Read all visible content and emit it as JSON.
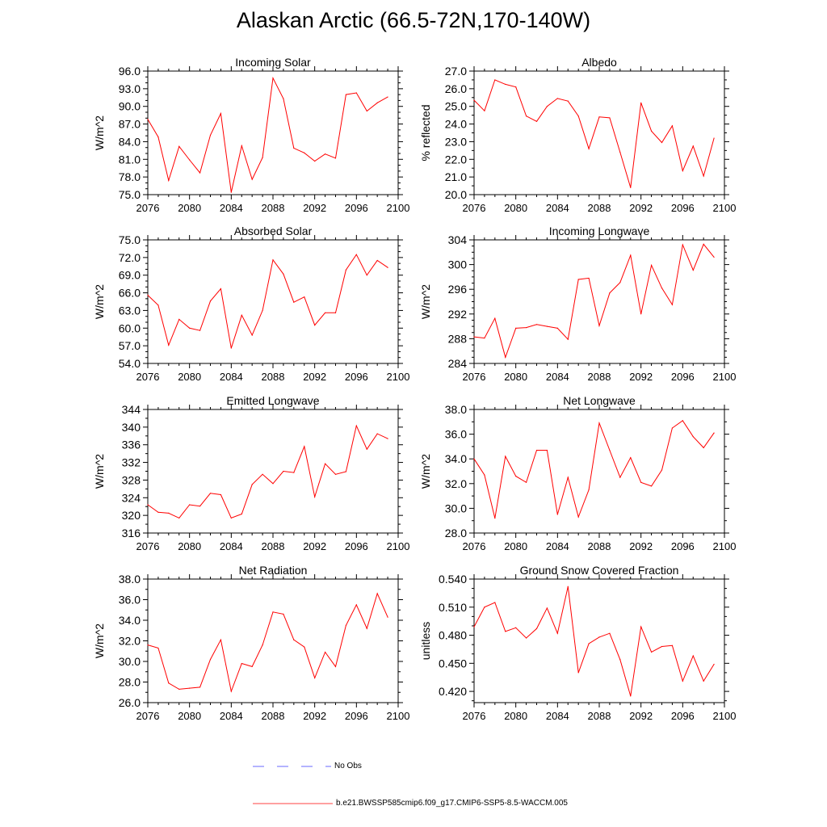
{
  "title": "Alaskan Arctic (66.5-72N,170-140W)",
  "colors": {
    "model": "#ff0000",
    "obs": "#0000ff",
    "axis": "#000000"
  },
  "legend": {
    "obs_label": "No Obs",
    "model_label": "b.e21.BWSSP585cmip6.f09_g17.CMIP6-SSP5-8.5-WACCM.005"
  },
  "chart_data": [
    {
      "type": "line",
      "title": "Incoming Solar",
      "ylabel": "W/m^2",
      "xlabel": "",
      "xlim": [
        2076,
        2100
      ],
      "ylim": [
        75,
        96
      ],
      "decimals": 1,
      "xticks": [
        2076,
        2080,
        2084,
        2088,
        2092,
        2096,
        2100
      ],
      "yticks": [
        75,
        78,
        81,
        84,
        87,
        90,
        93,
        96
      ],
      "yminor": [
        76,
        77,
        79,
        80,
        82,
        83,
        85,
        86,
        88,
        89,
        91,
        92,
        94,
        95
      ],
      "x": [
        2076,
        2077,
        2078,
        2079,
        2080,
        2081,
        2082,
        2083,
        2084,
        2085,
        2086,
        2087,
        2088,
        2089,
        2090,
        2091,
        2092,
        2093,
        2094,
        2095,
        2096,
        2097,
        2098,
        2099
      ],
      "series": [
        {
          "name": "b.e21.BWSSP585cmip6.f09_g17.CMIP6-SSP5-8.5-WACCM.005",
          "values": [
            87.8,
            84.8,
            77.4,
            83.2,
            80.9,
            78.7,
            85.1,
            88.8,
            75.4,
            83.3,
            77.6,
            81.3,
            94.8,
            91.3,
            82.9,
            82.1,
            80.7,
            81.9,
            81.2,
            92.0,
            92.3,
            89.2,
            90.6,
            91.6
          ]
        }
      ]
    },
    {
      "type": "line",
      "title": "Albedo",
      "ylabel": "% reflected",
      "xlabel": "",
      "xlim": [
        2076,
        2100
      ],
      "ylim": [
        20,
        27
      ],
      "decimals": 1,
      "xticks": [
        2076,
        2080,
        2084,
        2088,
        2092,
        2096,
        2100
      ],
      "yticks": [
        20,
        21,
        22,
        23,
        24,
        25,
        26,
        27
      ],
      "yminor": [
        20.5,
        21.5,
        22.5,
        23.5,
        24.5,
        25.5,
        26.5
      ],
      "x": [
        2076,
        2077,
        2078,
        2079,
        2080,
        2081,
        2082,
        2083,
        2084,
        2085,
        2086,
        2087,
        2088,
        2089,
        2090,
        2091,
        2092,
        2093,
        2094,
        2095,
        2096,
        2097,
        2098,
        2099
      ],
      "series": [
        {
          "name": "b.e21.BWSSP585cmip6.f09_g17.CMIP6-SSP5-8.5-WACCM.005",
          "values": [
            25.35,
            24.75,
            26.5,
            26.25,
            26.1,
            24.45,
            24.15,
            25.0,
            25.45,
            25.3,
            24.45,
            22.6,
            24.4,
            24.35,
            22.4,
            20.4,
            25.2,
            23.6,
            22.95,
            23.9,
            21.35,
            22.75,
            21.05,
            23.2
          ]
        }
      ]
    },
    {
      "type": "line",
      "title": "Absorbed Solar",
      "ylabel": "W/m^2",
      "xlabel": "",
      "xlim": [
        2076,
        2100
      ],
      "ylim": [
        54,
        75
      ],
      "decimals": 1,
      "xticks": [
        2076,
        2080,
        2084,
        2088,
        2092,
        2096,
        2100
      ],
      "yticks": [
        54,
        57,
        60,
        63,
        66,
        69,
        72,
        75
      ],
      "yminor": [
        55,
        56,
        58,
        59,
        61,
        62,
        64,
        65,
        67,
        68,
        70,
        71,
        73,
        74
      ],
      "x": [
        2076,
        2077,
        2078,
        2079,
        2080,
        2081,
        2082,
        2083,
        2084,
        2085,
        2086,
        2087,
        2088,
        2089,
        2090,
        2091,
        2092,
        2093,
        2094,
        2095,
        2096,
        2097,
        2098,
        2099
      ],
      "series": [
        {
          "name": "b.e21.BWSSP585cmip6.f09_g17.CMIP6-SSP5-8.5-WACCM.005",
          "values": [
            65.6,
            63.9,
            57.1,
            61.5,
            60.0,
            59.6,
            64.6,
            66.7,
            56.6,
            62.2,
            58.8,
            63.0,
            71.6,
            69.2,
            64.4,
            65.3,
            60.5,
            62.6,
            62.6,
            69.9,
            72.5,
            69.0,
            71.5,
            70.3
          ]
        }
      ]
    },
    {
      "type": "line",
      "title": "Incoming Longwave",
      "ylabel": "W/m^2",
      "xlabel": "",
      "xlim": [
        2076,
        2100
      ],
      "ylim": [
        284,
        304
      ],
      "decimals": 0,
      "xticks": [
        2076,
        2080,
        2084,
        2088,
        2092,
        2096,
        2100
      ],
      "yticks": [
        284,
        288,
        292,
        296,
        300,
        304
      ],
      "yminor": [
        285,
        286,
        287,
        289,
        290,
        291,
        293,
        294,
        295,
        297,
        298,
        299,
        301,
        302,
        303
      ],
      "x": [
        2076,
        2077,
        2078,
        2079,
        2080,
        2081,
        2082,
        2083,
        2084,
        2085,
        2086,
        2087,
        2088,
        2089,
        2090,
        2091,
        2092,
        2093,
        2094,
        2095,
        2096,
        2097,
        2098,
        2099
      ],
      "series": [
        {
          "name": "b.e21.BWSSP585cmip6.f09_g17.CMIP6-SSP5-8.5-WACCM.005",
          "values": [
            288.3,
            288.1,
            291.3,
            285.0,
            289.7,
            289.8,
            290.3,
            290.0,
            289.7,
            287.9,
            297.6,
            297.8,
            290.1,
            295.4,
            297.1,
            301.5,
            292.0,
            299.9,
            296.2,
            293.5,
            303.2,
            299.1,
            303.3,
            301.2
          ]
        }
      ]
    },
    {
      "type": "line",
      "title": "Emitted Longwave",
      "ylabel": "W/m^2",
      "xlabel": "",
      "xlim": [
        2076,
        2100
      ],
      "ylim": [
        316,
        344
      ],
      "decimals": 0,
      "xticks": [
        2076,
        2080,
        2084,
        2088,
        2092,
        2096,
        2100
      ],
      "yticks": [
        316,
        320,
        324,
        328,
        332,
        336,
        340,
        344
      ],
      "yminor": [
        318,
        322,
        326,
        330,
        334,
        338,
        342
      ],
      "x": [
        2076,
        2077,
        2078,
        2079,
        2080,
        2081,
        2082,
        2083,
        2084,
        2085,
        2086,
        2087,
        2088,
        2089,
        2090,
        2091,
        2092,
        2093,
        2094,
        2095,
        2096,
        2097,
        2098,
        2099
      ],
      "series": [
        {
          "name": "b.e21.BWSSP585cmip6.f09_g17.CMIP6-SSP5-8.5-WACCM.005",
          "values": [
            322.4,
            320.7,
            320.5,
            319.4,
            322.4,
            322.1,
            325.0,
            324.7,
            319.4,
            320.3,
            327.0,
            329.3,
            327.2,
            330.0,
            329.7,
            335.6,
            324.2,
            331.7,
            329.3,
            329.9,
            340.3,
            335.0,
            338.5,
            337.4
          ]
        }
      ]
    },
    {
      "type": "line",
      "title": "Net Longwave",
      "ylabel": "W/m^2",
      "xlabel": "",
      "xlim": [
        2076,
        2100
      ],
      "ylim": [
        28,
        38
      ],
      "decimals": 1,
      "xticks": [
        2076,
        2080,
        2084,
        2088,
        2092,
        2096,
        2100
      ],
      "yticks": [
        28,
        30,
        32,
        34,
        36,
        38
      ],
      "yminor": [
        29,
        31,
        33,
        35,
        37
      ],
      "x": [
        2076,
        2077,
        2078,
        2079,
        2080,
        2081,
        2082,
        2083,
        2084,
        2085,
        2086,
        2087,
        2088,
        2089,
        2090,
        2091,
        2092,
        2093,
        2094,
        2095,
        2096,
        2097,
        2098,
        2099
      ],
      "series": [
        {
          "name": "b.e21.BWSSP585cmip6.f09_g17.CMIP6-SSP5-8.5-WACCM.005",
          "values": [
            34.0,
            32.7,
            29.2,
            34.2,
            32.6,
            32.1,
            34.7,
            34.7,
            29.5,
            32.5,
            29.3,
            31.5,
            36.9,
            34.7,
            32.5,
            34.1,
            32.1,
            31.8,
            33.1,
            36.5,
            37.1,
            35.8,
            34.9,
            36.1
          ]
        }
      ]
    },
    {
      "type": "line",
      "title": "Net Radiation",
      "ylabel": "W/m^2",
      "xlabel": "",
      "xlim": [
        2076,
        2100
      ],
      "ylim": [
        26,
        38
      ],
      "decimals": 1,
      "xticks": [
        2076,
        2080,
        2084,
        2088,
        2092,
        2096,
        2100
      ],
      "yticks": [
        26,
        28,
        30,
        32,
        34,
        36,
        38
      ],
      "yminor": [
        27,
        29,
        31,
        33,
        35,
        37
      ],
      "x": [
        2076,
        2077,
        2078,
        2079,
        2080,
        2081,
        2082,
        2083,
        2084,
        2085,
        2086,
        2087,
        2088,
        2089,
        2090,
        2091,
        2092,
        2093,
        2094,
        2095,
        2096,
        2097,
        2098,
        2099
      ],
      "series": [
        {
          "name": "b.e21.BWSSP585cmip6.f09_g17.CMIP6-SSP5-8.5-WACCM.005",
          "values": [
            31.6,
            31.3,
            27.9,
            27.3,
            27.4,
            27.5,
            30.2,
            32.1,
            27.1,
            29.8,
            29.5,
            31.6,
            34.8,
            34.6,
            32.1,
            31.4,
            28.4,
            30.9,
            29.5,
            33.5,
            35.5,
            33.2,
            36.6,
            34.3
          ]
        }
      ]
    },
    {
      "type": "line",
      "title": "Ground Snow Covered Fraction",
      "ylabel": "unitless",
      "xlabel": "",
      "xlim": [
        2076,
        2100
      ],
      "ylim": [
        0.408,
        0.54
      ],
      "decimals": 3,
      "xticks": [
        2076,
        2080,
        2084,
        2088,
        2092,
        2096,
        2100
      ],
      "yticks": [
        0.42,
        0.45,
        0.48,
        0.51,
        0.54
      ],
      "yminor": [
        0.41,
        0.43,
        0.44,
        0.46,
        0.47,
        0.49,
        0.5,
        0.52,
        0.53
      ],
      "x": [
        2076,
        2077,
        2078,
        2079,
        2080,
        2081,
        2082,
        2083,
        2084,
        2085,
        2086,
        2087,
        2088,
        2089,
        2090,
        2091,
        2092,
        2093,
        2094,
        2095,
        2096,
        2097,
        2098,
        2099
      ],
      "series": [
        {
          "name": "b.e21.BWSSP585cmip6.f09_g17.CMIP6-SSP5-8.5-WACCM.005",
          "values": [
            0.489,
            0.51,
            0.515,
            0.484,
            0.488,
            0.477,
            0.487,
            0.509,
            0.482,
            0.532,
            0.44,
            0.471,
            0.478,
            0.482,
            0.454,
            0.415,
            0.489,
            0.462,
            0.468,
            0.469,
            0.431,
            0.458,
            0.431,
            0.449
          ]
        }
      ]
    }
  ]
}
